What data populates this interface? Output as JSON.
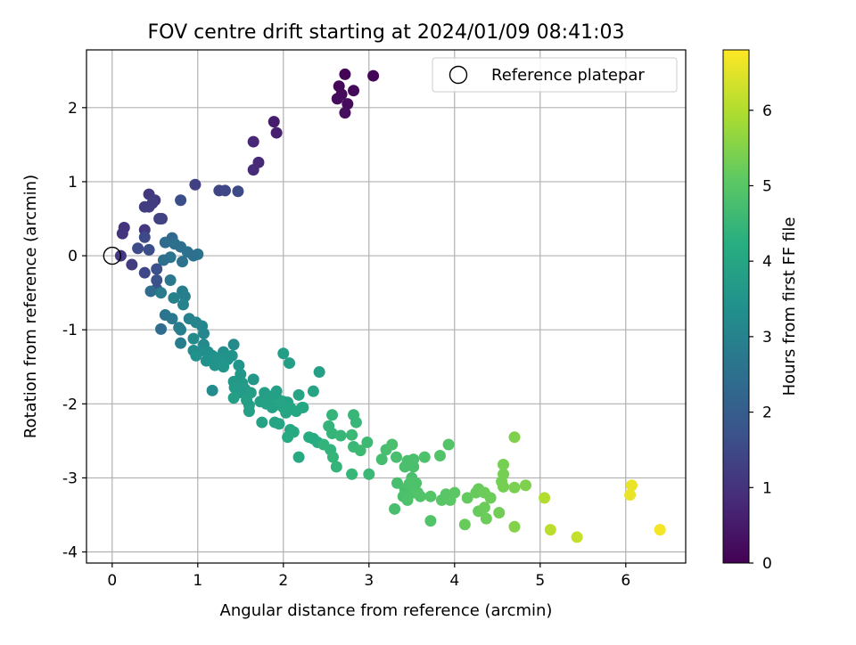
{
  "chart_data": {
    "type": "scatter",
    "title": "FOV centre drift starting at 2024/01/09 08:41:03",
    "xlabel": "Angular distance from reference (arcmin)",
    "ylabel": "Rotation from reference (arcmin)",
    "xlim": [
      -0.3,
      6.7
    ],
    "ylim": [
      -4.15,
      2.78
    ],
    "xticks": [
      0,
      1,
      2,
      3,
      4,
      5,
      6
    ],
    "yticks": [
      -4,
      -3,
      -2,
      -1,
      0,
      1,
      2
    ],
    "grid": true,
    "legend": {
      "location": "top-right",
      "entries": [
        "Reference platepar"
      ]
    },
    "reference": {
      "x": 0,
      "y": 0
    },
    "colorbar": {
      "label": "Hours from first FF file",
      "colormap": "viridis",
      "range": [
        0,
        6.8
      ],
      "ticks": [
        0,
        1,
        2,
        3,
        4,
        5,
        6
      ]
    },
    "points": [
      [
        2.72,
        2.45,
        0.05
      ],
      [
        3.05,
        2.43,
        0.1
      ],
      [
        2.65,
        2.29,
        0.12
      ],
      [
        2.82,
        2.23,
        0.15
      ],
      [
        2.68,
        2.18,
        0.18
      ],
      [
        2.63,
        2.12,
        0.2
      ],
      [
        2.75,
        2.05,
        0.22
      ],
      [
        2.72,
        1.93,
        0.25
      ],
      [
        1.89,
        1.81,
        0.55
      ],
      [
        1.92,
        1.66,
        0.6
      ],
      [
        1.65,
        1.54,
        0.75
      ],
      [
        1.71,
        1.26,
        0.8
      ],
      [
        1.65,
        1.16,
        0.85
      ],
      [
        0.97,
        0.96,
        1.3
      ],
      [
        1.25,
        0.88,
        1.4
      ],
      [
        1.32,
        0.88,
        1.45
      ],
      [
        1.47,
        0.87,
        1.5
      ],
      [
        0.43,
        0.83,
        1.1
      ],
      [
        0.5,
        0.75,
        1.15
      ],
      [
        0.8,
        0.75,
        1.6
      ],
      [
        0.47,
        0.71,
        1.2
      ],
      [
        0.38,
        0.66,
        1.25
      ],
      [
        0.43,
        0.66,
        1.22
      ],
      [
        0.55,
        0.5,
        1.3
      ],
      [
        0.58,
        0.5,
        1.35
      ],
      [
        0.14,
        0.38,
        1.0
      ],
      [
        0.38,
        0.35,
        1.1
      ],
      [
        0.12,
        0.3,
        1.05
      ],
      [
        0.38,
        0.25,
        1.5
      ],
      [
        0.7,
        0.24,
        2.3
      ],
      [
        0.62,
        0.18,
        2.4
      ],
      [
        0.73,
        0.16,
        2.5
      ],
      [
        0.8,
        0.12,
        2.45
      ],
      [
        0.3,
        0.1,
        1.55
      ],
      [
        0.43,
        0.08,
        1.6
      ],
      [
        0.88,
        0.05,
        2.55
      ],
      [
        1.0,
        0.02,
        2.6
      ],
      [
        0.1,
        0.0,
        1.15
      ],
      [
        0.95,
        0.0,
        2.5
      ],
      [
        0.68,
        -0.02,
        2.6
      ],
      [
        0.6,
        -0.06,
        2.5
      ],
      [
        0.82,
        -0.08,
        2.55
      ],
      [
        0.23,
        -0.12,
        1.2
      ],
      [
        0.52,
        -0.18,
        1.65
      ],
      [
        0.38,
        -0.23,
        1.45
      ],
      [
        0.52,
        -0.33,
        1.7
      ],
      [
        0.68,
        -0.33,
        2.7
      ],
      [
        0.52,
        -0.45,
        1.75
      ],
      [
        0.45,
        -0.48,
        2.4
      ],
      [
        0.57,
        -0.5,
        2.8
      ],
      [
        0.82,
        -0.48,
        2.85
      ],
      [
        0.85,
        -0.55,
        2.9
      ],
      [
        0.72,
        -0.57,
        2.95
      ],
      [
        0.83,
        -0.66,
        3.0
      ],
      [
        0.62,
        -0.8,
        2.6
      ],
      [
        0.7,
        -0.85,
        2.7
      ],
      [
        0.9,
        -0.85,
        3.0
      ],
      [
        0.98,
        -0.9,
        3.05
      ],
      [
        1.05,
        -0.95,
        3.1
      ],
      [
        0.57,
        -0.99,
        2.4
      ],
      [
        0.78,
        -0.97,
        2.8
      ],
      [
        0.8,
        -1.0,
        2.9
      ],
      [
        1.07,
        -1.05,
        3.1
      ],
      [
        0.95,
        -1.12,
        3.2
      ],
      [
        0.8,
        -1.18,
        2.85
      ],
      [
        1.07,
        -1.2,
        3.15
      ],
      [
        1.42,
        -1.2,
        3.2
      ],
      [
        0.95,
        -1.28,
        3.25
      ],
      [
        1.05,
        -1.28,
        3.3
      ],
      [
        1.12,
        -1.3,
        3.35
      ],
      [
        1.3,
        -1.3,
        3.35
      ],
      [
        0.98,
        -1.35,
        3.4
      ],
      [
        1.17,
        -1.35,
        3.4
      ],
      [
        1.22,
        -1.38,
        3.45
      ],
      [
        1.33,
        -1.35,
        3.45
      ],
      [
        1.4,
        -1.35,
        3.5
      ],
      [
        1.25,
        -1.4,
        3.5
      ],
      [
        1.35,
        -1.4,
        3.45
      ],
      [
        1.1,
        -1.42,
        3.4
      ],
      [
        1.28,
        -1.45,
        3.5
      ],
      [
        1.2,
        -1.48,
        3.5
      ],
      [
        1.3,
        -1.5,
        3.55
      ],
      [
        1.48,
        -1.48,
        3.55
      ],
      [
        1.5,
        -1.6,
        3.6
      ],
      [
        1.42,
        -1.7,
        3.6
      ],
      [
        1.52,
        -1.72,
        3.65
      ],
      [
        1.65,
        -1.67,
        3.6
      ],
      [
        1.43,
        -1.78,
        3.7
      ],
      [
        1.55,
        -1.8,
        3.7
      ],
      [
        1.17,
        -1.82,
        3.3
      ],
      [
        1.48,
        -1.85,
        3.7
      ],
      [
        1.62,
        -1.85,
        3.75
      ],
      [
        1.78,
        -1.85,
        3.8
      ],
      [
        1.92,
        -1.83,
        3.85
      ],
      [
        1.85,
        -1.9,
        3.85
      ],
      [
        1.42,
        -1.92,
        3.8
      ],
      [
        1.57,
        -1.95,
        3.8
      ],
      [
        1.73,
        -1.97,
        3.85
      ],
      [
        1.95,
        -1.95,
        3.9
      ],
      [
        2.0,
        -1.97,
        3.95
      ],
      [
        2.05,
        -1.98,
        3.9
      ],
      [
        1.8,
        -2.0,
        3.9
      ],
      [
        2.18,
        -1.88,
        3.95
      ],
      [
        2.35,
        -1.83,
        3.95
      ],
      [
        2.08,
        -2.05,
        4.0
      ],
      [
        2.22,
        -2.05,
        4.0
      ],
      [
        2.0,
        -2.05,
        4.0
      ],
      [
        2.15,
        -2.1,
        4.05
      ],
      [
        1.9,
        -2.02,
        3.95
      ],
      [
        1.6,
        -2.02,
        3.8
      ],
      [
        1.6,
        -2.1,
        3.85
      ],
      [
        1.87,
        -2.05,
        3.9
      ],
      [
        2.23,
        -2.05,
        4.05
      ],
      [
        2.03,
        -2.12,
        4.0
      ],
      [
        1.75,
        -2.25,
        3.9
      ],
      [
        1.9,
        -2.25,
        3.95
      ],
      [
        1.95,
        -2.27,
        4.0
      ],
      [
        2.08,
        -2.35,
        4.05
      ],
      [
        2.05,
        -2.45,
        4.1
      ],
      [
        2.12,
        -2.38,
        4.1
      ],
      [
        2.3,
        -2.45,
        4.15
      ],
      [
        2.35,
        -2.47,
        4.15
      ],
      [
        2.4,
        -2.52,
        4.2
      ],
      [
        2.0,
        -1.32,
        3.8
      ],
      [
        2.07,
        -1.45,
        3.8
      ],
      [
        2.42,
        -1.57,
        3.85
      ],
      [
        2.18,
        -2.72,
        4.1
      ],
      [
        2.57,
        -2.15,
        4.45
      ],
      [
        2.82,
        -2.15,
        4.5
      ],
      [
        2.85,
        -2.25,
        4.5
      ],
      [
        2.53,
        -2.3,
        4.45
      ],
      [
        2.57,
        -2.4,
        4.45
      ],
      [
        2.67,
        -2.43,
        4.5
      ],
      [
        2.8,
        -2.42,
        4.55
      ],
      [
        2.98,
        -2.52,
        4.6
      ],
      [
        2.47,
        -2.55,
        4.4
      ],
      [
        2.55,
        -2.62,
        4.4
      ],
      [
        2.82,
        -2.58,
        4.55
      ],
      [
        2.9,
        -2.63,
        4.6
      ],
      [
        2.58,
        -2.72,
        4.45
      ],
      [
        2.62,
        -2.85,
        4.45
      ],
      [
        2.8,
        -2.95,
        4.5
      ],
      [
        3.0,
        -2.95,
        4.55
      ],
      [
        3.15,
        -2.75,
        4.7
      ],
      [
        3.2,
        -2.62,
        4.75
      ],
      [
        3.27,
        -2.55,
        4.8
      ],
      [
        3.32,
        -2.72,
        4.75
      ],
      [
        3.45,
        -2.77,
        4.8
      ],
      [
        3.42,
        -2.85,
        4.8
      ],
      [
        3.52,
        -2.85,
        4.8
      ],
      [
        3.52,
        -2.75,
        4.8
      ],
      [
        3.65,
        -2.72,
        4.85
      ],
      [
        3.83,
        -2.7,
        4.9
      ],
      [
        3.93,
        -2.55,
        4.95
      ],
      [
        3.5,
        -3.0,
        4.8
      ],
      [
        3.33,
        -3.07,
        4.75
      ],
      [
        3.42,
        -3.15,
        4.8
      ],
      [
        3.47,
        -3.08,
        4.85
      ],
      [
        3.52,
        -3.2,
        4.85
      ],
      [
        3.4,
        -3.25,
        4.8
      ],
      [
        3.45,
        -3.3,
        4.85
      ],
      [
        3.57,
        -3.2,
        4.9
      ],
      [
        3.6,
        -3.25,
        4.9
      ],
      [
        3.72,
        -3.25,
        4.95
      ],
      [
        3.55,
        -3.07,
        4.85
      ],
      [
        3.3,
        -3.42,
        4.75
      ],
      [
        3.72,
        -3.58,
        4.9
      ],
      [
        3.85,
        -3.3,
        5.0
      ],
      [
        3.9,
        -3.22,
        5.0
      ],
      [
        3.95,
        -3.3,
        5.05
      ],
      [
        4.0,
        -3.2,
        5.05
      ],
      [
        4.15,
        -3.27,
        5.15
      ],
      [
        4.25,
        -3.2,
        5.2
      ],
      [
        4.28,
        -3.15,
        5.2
      ],
      [
        4.35,
        -3.2,
        5.25
      ],
      [
        4.42,
        -3.27,
        5.25
      ],
      [
        4.28,
        -3.45,
        5.2
      ],
      [
        4.35,
        -3.4,
        5.25
      ],
      [
        4.37,
        -3.55,
        5.25
      ],
      [
        4.52,
        -3.47,
        5.3
      ],
      [
        4.12,
        -3.63,
        5.2
      ],
      [
        4.57,
        -2.82,
        5.35
      ],
      [
        4.57,
        -2.95,
        5.35
      ],
      [
        4.55,
        -3.05,
        5.35
      ],
      [
        4.57,
        -3.12,
        5.35
      ],
      [
        4.7,
        -3.13,
        5.4
      ],
      [
        4.83,
        -3.1,
        5.45
      ],
      [
        4.7,
        -2.45,
        5.45
      ],
      [
        4.7,
        -3.66,
        5.5
      ],
      [
        5.05,
        -3.27,
        6.0
      ],
      [
        5.12,
        -3.7,
        6.1
      ],
      [
        5.43,
        -3.8,
        6.2
      ],
      [
        6.07,
        -3.1,
        6.6
      ],
      [
        6.05,
        -3.23,
        6.6
      ],
      [
        6.4,
        -3.7,
        6.7
      ]
    ]
  }
}
